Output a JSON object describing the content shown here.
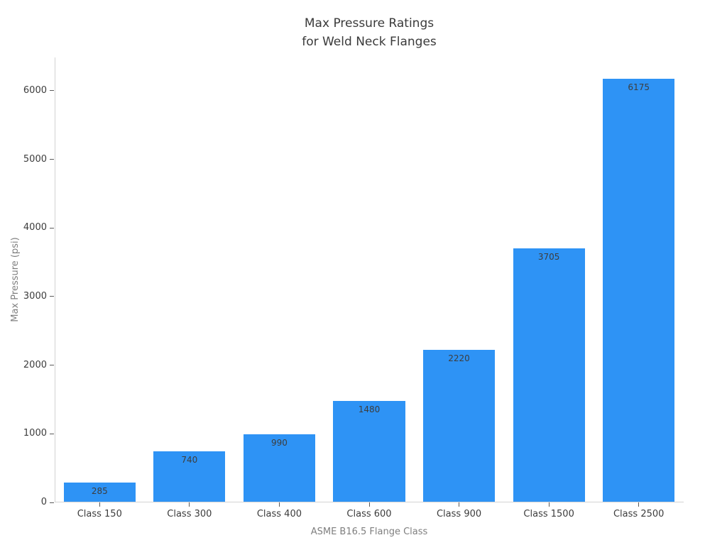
{
  "chart_data": {
    "type": "bar",
    "title": "Max Pressure Ratings for Weld Neck Flanges",
    "title_lines": [
      "Max Pressure Ratings",
      "for Weld Neck Flanges"
    ],
    "xlabel": "ASME B16.5 Flange Class",
    "ylabel": "Max Pressure (psi)",
    "categories": [
      "Class 150",
      "Class 300",
      "Class 400",
      "Class 600",
      "Class 900",
      "Class 1500",
      "Class 2500"
    ],
    "values": [
      285,
      740,
      990,
      1480,
      2220,
      3705,
      6175
    ],
    "bar_labels": [
      "285",
      "740",
      "990",
      "1480",
      "2220",
      "3705",
      "6175"
    ],
    "yticks": [
      0,
      1000,
      2000,
      3000,
      4000,
      5000,
      6000
    ],
    "ylim": [
      0,
      6484
    ],
    "bar_width_fraction": 0.8,
    "grid": false,
    "legend": "none",
    "colors": {
      "bar": "#2E93F5",
      "title_text": "#3A3A3A",
      "tick_label_text": "#3C3C3C",
      "bar_value_text": "#3D3D3D",
      "axis_title_text": "#7F7F7F",
      "spine": "#D3D3D3",
      "tick_mark": "#5A5A5A",
      "background": "#FFFFFF"
    }
  }
}
